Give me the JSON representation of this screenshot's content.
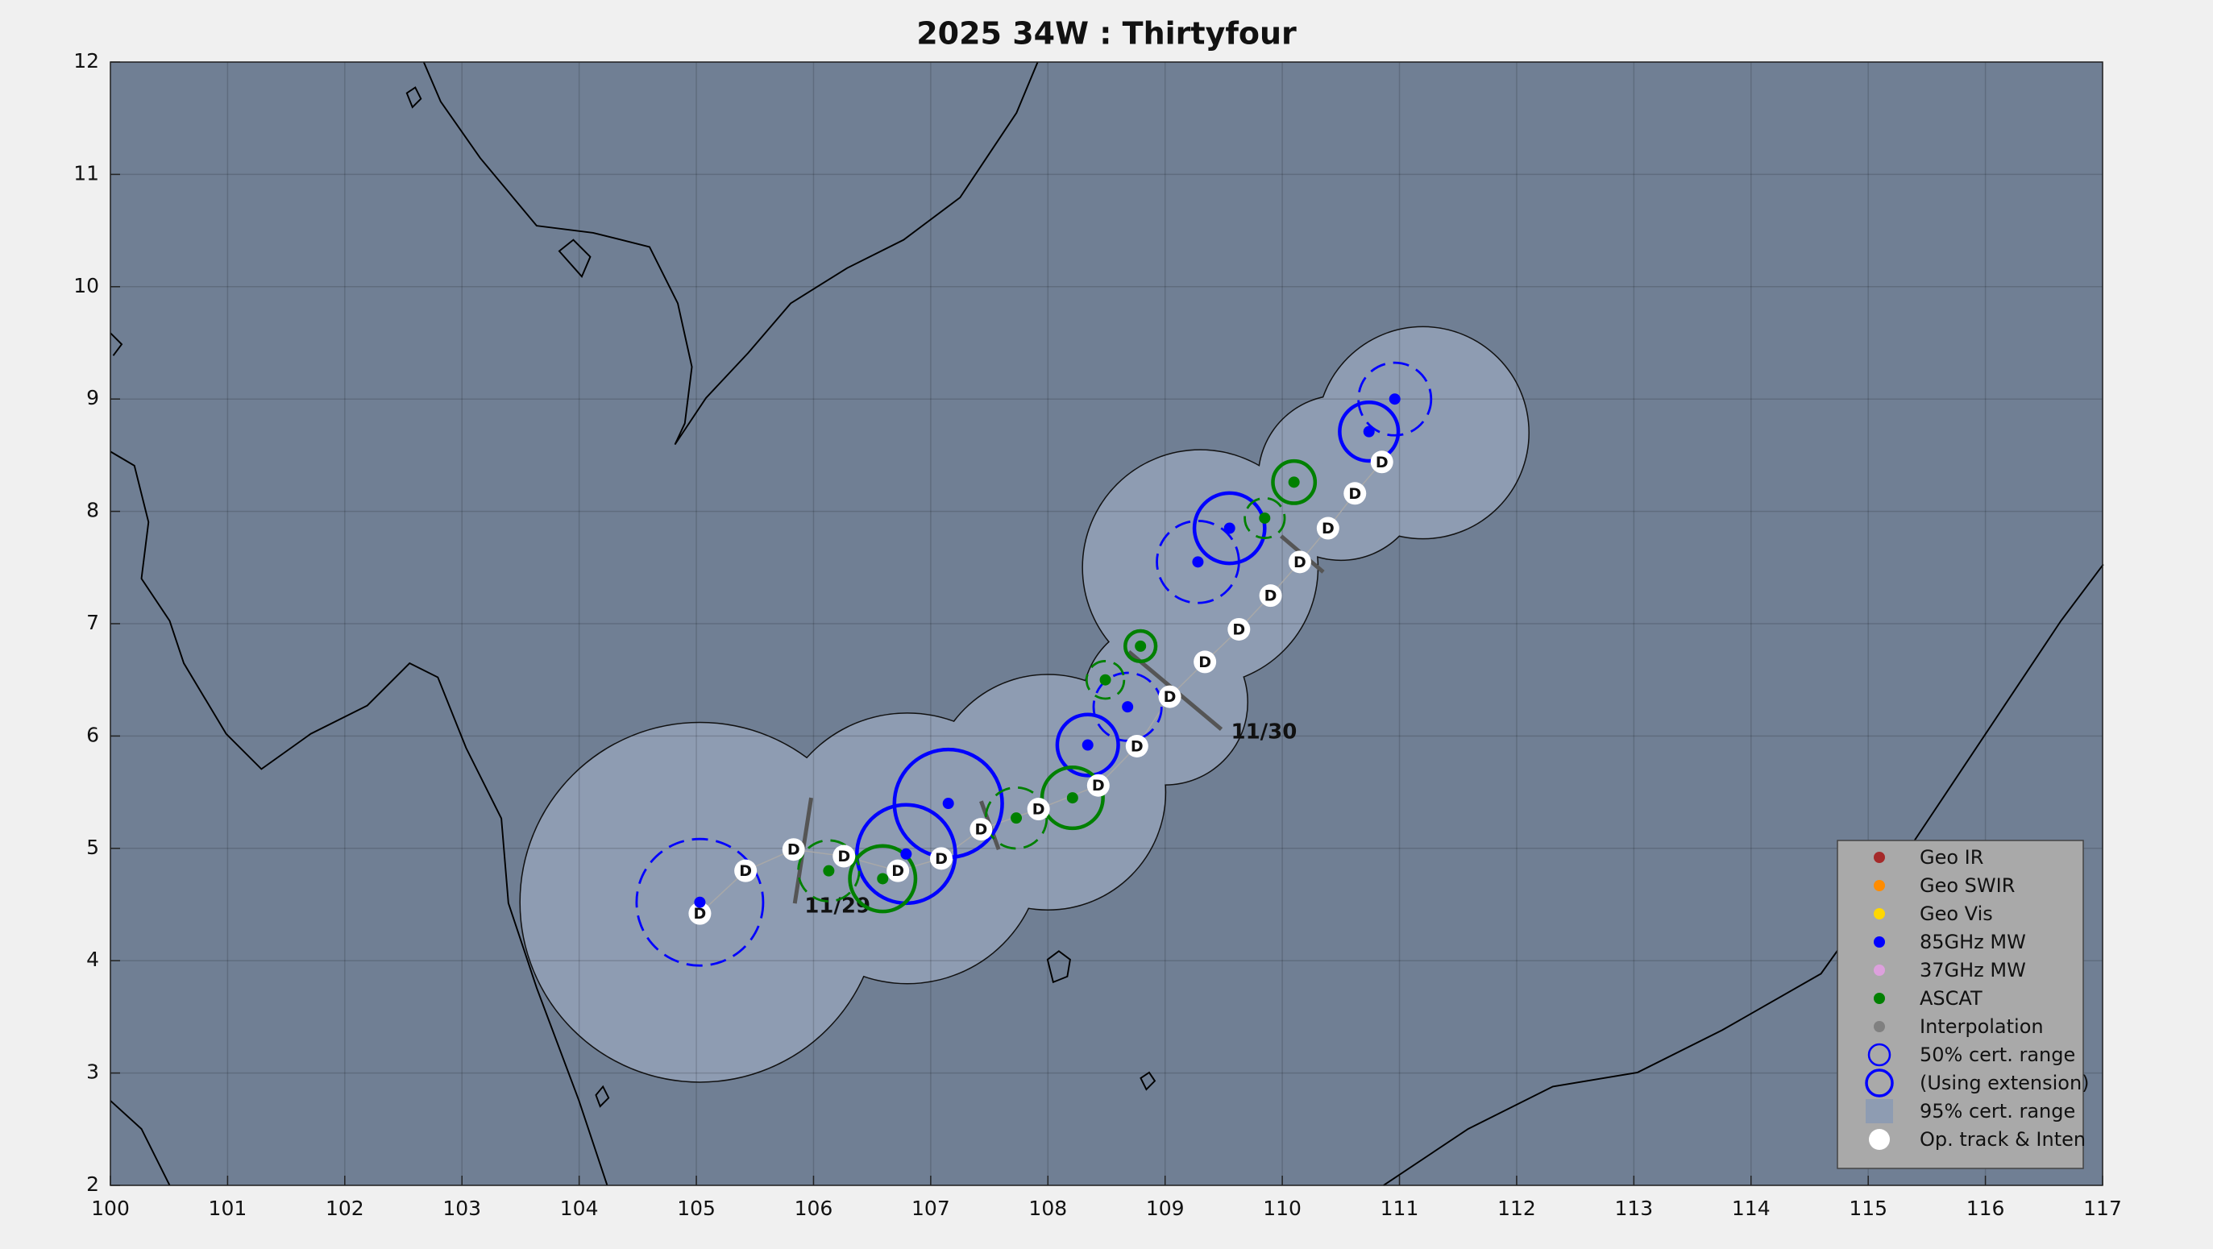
{
  "chart_data": {
    "type": "track_map",
    "title": "2025  34W :  Thirtyfour",
    "xlim": [
      100,
      117
    ],
    "ylim": [
      2,
      12
    ],
    "xticks": [
      100,
      101,
      102,
      103,
      104,
      105,
      106,
      107,
      108,
      109,
      110,
      111,
      112,
      113,
      114,
      115,
      116,
      117
    ],
    "yticks": [
      2,
      3,
      4,
      5,
      6,
      7,
      8,
      9,
      10,
      11,
      12
    ],
    "grid": true,
    "cert95": {
      "color": "#8e9cb2",
      "x": [
        105.03,
        106.8,
        108.0,
        109.0,
        109.3,
        110.5,
        111.2
      ],
      "y": [
        4.52,
        5.0,
        5.5,
        6.3,
        7.5,
        8.3,
        8.7
      ],
      "radius": [
        1.53,
        1.15,
        1.0,
        0.7,
        1.0,
        0.7,
        0.9
      ]
    },
    "series": [
      {
        "color": "#0000ff",
        "x": [
          105.03,
          106.79,
          107.15,
          108.34,
          108.68,
          109.28,
          109.55,
          110.74,
          110.96
        ],
        "y": [
          4.52,
          4.95,
          5.4,
          5.92,
          6.26,
          7.55,
          7.85,
          8.71,
          9.0
        ],
        "radius": [
          0.54,
          0.42,
          0.46,
          0.26,
          0.29,
          0.35,
          0.3,
          0.25,
          0.31
        ],
        "extension": [
          false,
          true,
          true,
          true,
          false,
          false,
          true,
          true,
          false
        ]
      },
      {
        "color": "#008000",
        "x": [
          106.13,
          106.59,
          107.73,
          108.21,
          108.49,
          108.79,
          109.85,
          110.1
        ],
        "y": [
          4.8,
          4.73,
          5.27,
          5.45,
          6.5,
          6.8,
          7.94,
          8.26
        ],
        "radius": [
          0.26,
          0.28,
          0.26,
          0.26,
          0.16,
          0.13,
          0.17,
          0.18
        ],
        "extension": [
          false,
          true,
          false,
          true,
          false,
          true,
          false,
          true
        ]
      }
    ],
    "op_track": {
      "color": "#ffffff",
      "label": "D",
      "x": [
        105.03,
        105.42,
        105.83,
        106.26,
        106.72,
        107.09,
        107.43,
        107.92,
        108.43,
        108.76,
        109.04,
        109.34,
        109.63,
        109.9,
        110.15,
        110.39,
        110.62,
        110.85
      ],
      "y": [
        4.42,
        4.8,
        4.99,
        4.93,
        4.8,
        4.91,
        5.17,
        5.35,
        5.56,
        5.91,
        6.35,
        6.66,
        6.95,
        7.25,
        7.55,
        7.85,
        8.16,
        8.44
      ]
    },
    "date_lines": [
      {
        "x": [
          105.98,
          105.84
        ],
        "y": [
          5.45,
          4.51
        ],
        "label": "11/29"
      },
      {
        "x": [
          107.43,
          107.58
        ],
        "y": [
          5.42,
          4.99
        ]
      },
      {
        "x": [
          108.69,
          109.48
        ],
        "y": [
          6.75,
          6.06
        ],
        "label": "11/30"
      },
      {
        "x": [
          109.99,
          110.35
        ],
        "y": [
          7.78,
          7.46
        ]
      }
    ],
    "legend": {
      "location": "lower right",
      "items": [
        {
          "name": "Geo IR",
          "color": "#a52a2a",
          "marker": "dot"
        },
        {
          "name": "Geo SWIR",
          "color": "#ff8c00",
          "marker": "dot"
        },
        {
          "name": "Geo Vis",
          "color": "#ffd700",
          "marker": "dot"
        },
        {
          "name": "85GHz MW",
          "color": "#0000ff",
          "marker": "dot"
        },
        {
          "name": "37GHz MW",
          "color": "#dda0dd",
          "marker": "dot"
        },
        {
          "name": "ASCAT",
          "color": "#008000",
          "marker": "dot"
        },
        {
          "name": "Interpolation",
          "color": "#808080",
          "marker": "dot"
        },
        {
          "name": "50% cert. range",
          "color": "#0000ff",
          "marker": "ring"
        },
        {
          "name": "(Using extension)",
          "color": "#0000ff",
          "marker": "ring-large"
        },
        {
          "name": "95% cert. range",
          "color": "#8e9cb2",
          "marker": "square"
        },
        {
          "name": "Op. track & Inten",
          "color": "#ffffff",
          "marker": "big-dot"
        }
      ]
    }
  }
}
